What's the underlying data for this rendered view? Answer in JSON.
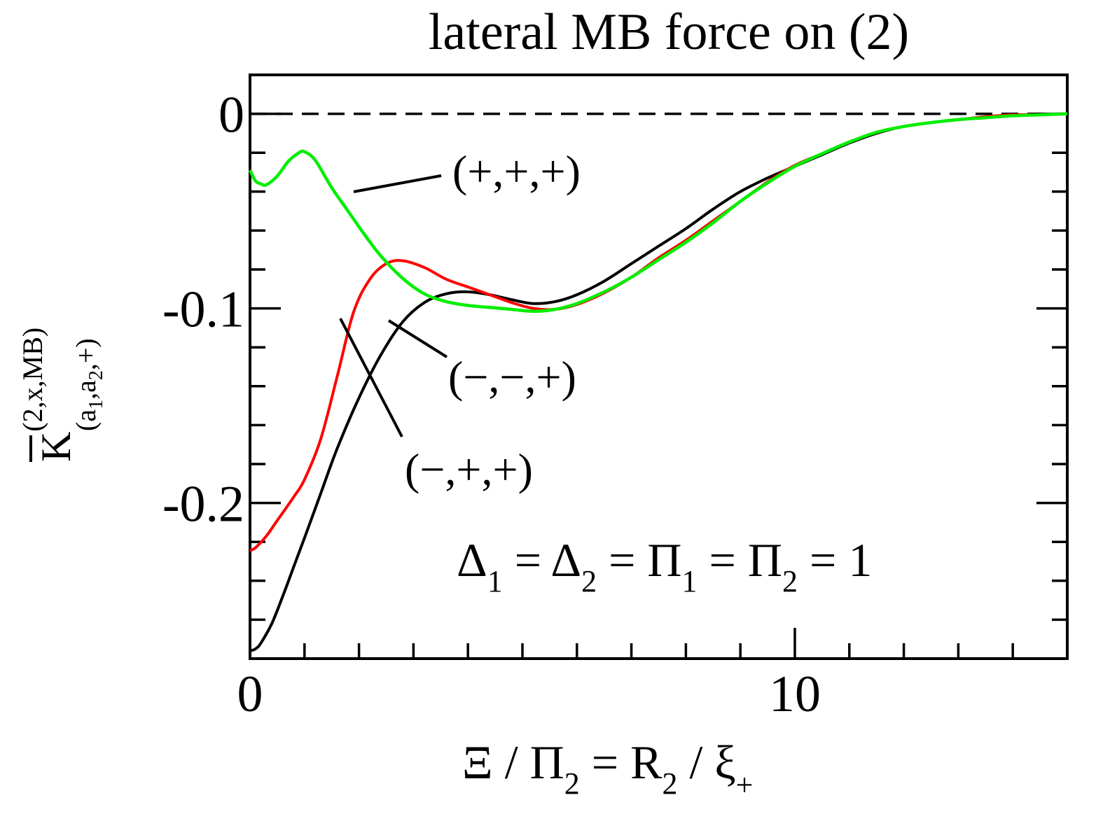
{
  "chart_data": {
    "type": "line",
    "title": "lateral MB force on (2)",
    "xlabel": {
      "parts": [
        "Ξ / Π",
        "2",
        " = R",
        "2",
        " / ξ",
        "+"
      ]
    },
    "ylabel": {
      "main": "K",
      "sup": "(2,x,MB)",
      "sub_open": "(a",
      "sub_1": "1",
      "sub_mid": ",a",
      "sub_2": "2",
      "sub_close": ",+)"
    },
    "xlim": [
      0,
      15
    ],
    "ylim": [
      -0.28,
      0.02
    ],
    "x_ticks": [
      0,
      10
    ],
    "x_ticks_minor_step": 1,
    "y_ticks": [
      0,
      -0.1,
      -0.2
    ],
    "y_tick_labels": [
      "0",
      "-0.1",
      "-0.2"
    ],
    "y_ticks_minor_step": 0.02,
    "grid": false,
    "reference_line": {
      "y": 0,
      "style": "dashed",
      "color": "#000000"
    },
    "parameter_text": {
      "parts": [
        "Δ",
        "1",
        " = Δ",
        "2",
        " = Π",
        "1",
        " = Π",
        "2",
        " = 1"
      ]
    },
    "series": [
      {
        "label": "(−,−,+)",
        "color": "#000000",
        "x": [
          0.0,
          0.1,
          0.2,
          0.4,
          0.6,
          0.8,
          1.0,
          1.3,
          1.6,
          2.0,
          2.4,
          2.8,
          3.2,
          3.6,
          4.0,
          4.4,
          4.8,
          5.2,
          5.6,
          6.0,
          6.5,
          7.0,
          7.5,
          8.0,
          8.5,
          9.0,
          9.5,
          10.0,
          10.5,
          11.0,
          11.5,
          12.0,
          12.5,
          13.0,
          13.5,
          14.0,
          14.5,
          15.0
        ],
        "y": [
          -0.276,
          -0.275,
          -0.272,
          -0.262,
          -0.248,
          -0.233,
          -0.218,
          -0.195,
          -0.172,
          -0.146,
          -0.124,
          -0.107,
          -0.097,
          -0.0925,
          -0.0915,
          -0.093,
          -0.0955,
          -0.0975,
          -0.0965,
          -0.093,
          -0.086,
          -0.077,
          -0.068,
          -0.059,
          -0.049,
          -0.04,
          -0.033,
          -0.027,
          -0.021,
          -0.015,
          -0.01,
          -0.0065,
          -0.0045,
          -0.003,
          -0.002,
          -0.001,
          -0.0005,
          0.0
        ]
      },
      {
        "label": "(−,+,+)",
        "color": "#ff0000",
        "x": [
          0.0,
          0.1,
          0.3,
          0.5,
          0.8,
          1.0,
          1.3,
          1.6,
          1.9,
          2.2,
          2.5,
          2.8,
          3.2,
          3.6,
          4.0,
          4.4,
          4.8,
          5.2,
          5.6,
          6.0,
          6.5,
          7.0,
          7.5,
          8.0,
          8.5,
          9.0,
          9.5,
          10.0,
          10.5,
          11.0,
          11.5,
          12.0,
          12.5,
          13.0,
          13.5,
          14.0,
          14.5,
          15.0
        ],
        "y": [
          -0.2245,
          -0.223,
          -0.217,
          -0.209,
          -0.197,
          -0.188,
          -0.167,
          -0.135,
          -0.102,
          -0.085,
          -0.077,
          -0.0755,
          -0.079,
          -0.085,
          -0.089,
          -0.093,
          -0.097,
          -0.1,
          -0.1005,
          -0.098,
          -0.092,
          -0.084,
          -0.074,
          -0.065,
          -0.055,
          -0.045,
          -0.035,
          -0.0265,
          -0.0205,
          -0.0145,
          -0.0095,
          -0.0065,
          -0.0045,
          -0.003,
          -0.0015,
          -0.0005,
          -0.0005,
          0.0
        ]
      },
      {
        "label": "(+,+,+)",
        "color": "#00ee00",
        "x": [
          0.0,
          0.1,
          0.2,
          0.3,
          0.5,
          0.7,
          0.9,
          1.0,
          1.2,
          1.5,
          1.8,
          2.1,
          2.4,
          2.8,
          3.2,
          3.6,
          4.0,
          4.4,
          4.8,
          5.2,
          5.6,
          6.0,
          6.5,
          7.0,
          7.5,
          8.0,
          8.5,
          9.0,
          9.5,
          10.0,
          10.5,
          11.0,
          11.5,
          12.0,
          12.5,
          13.0,
          13.5,
          14.0,
          14.5,
          15.0
        ],
        "y": [
          -0.029,
          -0.0345,
          -0.036,
          -0.0365,
          -0.032,
          -0.0245,
          -0.02,
          -0.0195,
          -0.024,
          -0.038,
          -0.05,
          -0.062,
          -0.073,
          -0.0845,
          -0.0925,
          -0.0965,
          -0.0985,
          -0.0995,
          -0.1005,
          -0.1015,
          -0.1005,
          -0.0975,
          -0.0915,
          -0.084,
          -0.075,
          -0.066,
          -0.056,
          -0.045,
          -0.0355,
          -0.027,
          -0.0205,
          -0.0145,
          -0.0095,
          -0.0065,
          -0.0045,
          -0.003,
          -0.002,
          -0.001,
          -0.0005,
          0.0
        ]
      }
    ],
    "annotations": [
      {
        "text": "(+,+,+)",
        "series": "(+,+,+)"
      },
      {
        "text": "(−,−,+)",
        "series": "(−,−,+)"
      },
      {
        "text": "(−,+,+)",
        "series": "(−,+,+)"
      }
    ]
  }
}
